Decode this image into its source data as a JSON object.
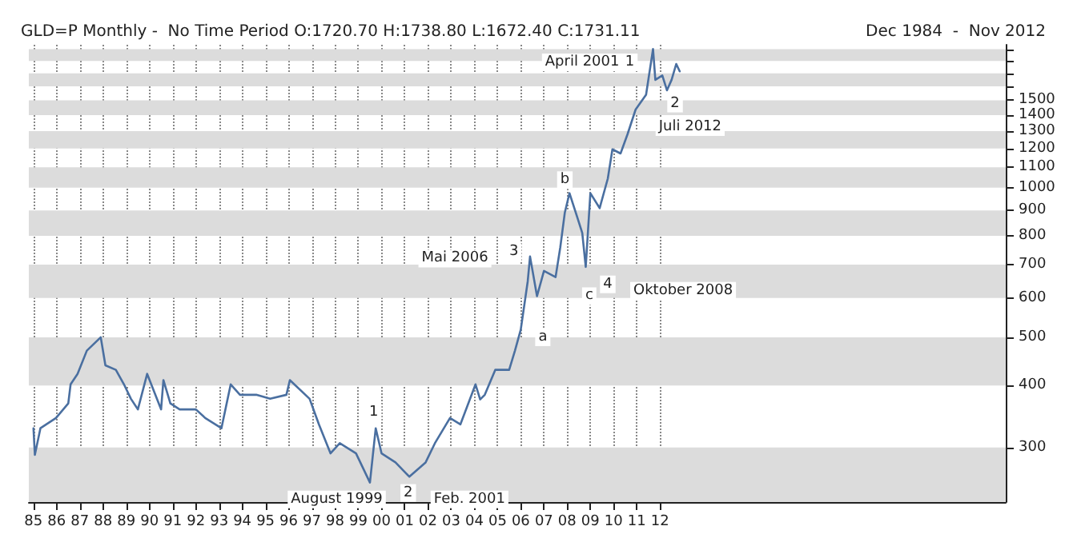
{
  "chart_data": {
    "type": "line",
    "title": "GLD=P Monthly -  No Time Period O:1720.70 H:1738.80 L:1672.40 C:1731.11",
    "subtitle": "Dec 1984  -  Nov 2012",
    "x": [
      1985.0,
      1985.06,
      1985.3,
      1985.97,
      1986.5,
      1986.6,
      1986.9,
      1987.3,
      1987.9,
      1988.1,
      1988.55,
      1988.9,
      1989.2,
      1989.5,
      1989.9,
      1990.5,
      1990.6,
      1990.9,
      1991.3,
      1992.0,
      1992.4,
      1993.1,
      1993.5,
      1993.9,
      1994.6,
      1995.2,
      1995.9,
      1996.05,
      1996.9,
      1997.3,
      1997.8,
      1998.2,
      1998.9,
      1999.5,
      1999.75,
      2000.0,
      2000.6,
      2001.2,
      2001.9,
      2002.3,
      2002.95,
      2003.4,
      2004.05,
      2004.25,
      2004.45,
      2004.9,
      2005.5,
      2005.75,
      2006.0,
      2006.3,
      2006.4,
      2006.7,
      2007.0,
      2007.5,
      2007.7,
      2007.9,
      2008.1,
      2008.45,
      2008.65,
      2008.8,
      2009.0,
      2009.4,
      2009.75,
      2009.95,
      2010.3,
      2010.6,
      2010.95,
      2011.4,
      2011.7,
      2011.8,
      2012.1,
      2012.3,
      2012.5,
      2012.7,
      2012.85
    ],
    "series": [
      {
        "color": "#4a6fa0",
        "values": [
          328,
          290,
          328,
          344,
          368,
          402,
          422,
          470,
          500,
          439,
          430,
          402,
          376,
          358,
          422,
          358,
          410,
          368,
          358,
          358,
          344,
          328,
          402,
          383,
          383,
          376,
          383,
          410,
          376,
          334,
          292,
          306,
          292,
          255,
          328,
          292,
          280,
          262,
          280,
          306,
          344,
          334,
          402,
          375,
          383,
          430,
          430,
          470,
          518,
          648,
          727,
          605,
          680,
          661,
          757,
          892,
          975,
          868,
          811,
          693,
          975,
          910,
          1043,
          1195,
          1172,
          1281,
          1437,
          1539,
          1902,
          1649,
          1683,
          1571,
          1649,
          1775,
          1715
        ]
      }
    ],
    "log": "y",
    "xlim": [
      1984.8,
      2026.9
    ],
    "ylim": [
      233,
      1940
    ],
    "xticks": [
      {
        "value": 1985,
        "label": "85"
      },
      {
        "value": 1986,
        "label": "86"
      },
      {
        "value": 1987,
        "label": "87"
      },
      {
        "value": 1988,
        "label": "88"
      },
      {
        "value": 1989,
        "label": "89"
      },
      {
        "value": 1990,
        "label": "90"
      },
      {
        "value": 1991,
        "label": "91"
      },
      {
        "value": 1992,
        "label": "92"
      },
      {
        "value": 1993,
        "label": "93"
      },
      {
        "value": 1994,
        "label": "94"
      },
      {
        "value": 1995,
        "label": "95"
      },
      {
        "value": 1996,
        "label": "96"
      },
      {
        "value": 1997,
        "label": "97"
      },
      {
        "value": 1998,
        "label": "98"
      },
      {
        "value": 1999,
        "label": "99"
      },
      {
        "value": 2000,
        "label": "00"
      },
      {
        "value": 2001,
        "label": "01"
      },
      {
        "value": 2002,
        "label": "02"
      },
      {
        "value": 2003,
        "label": "03"
      },
      {
        "value": 2004,
        "label": "04"
      },
      {
        "value": 2005,
        "label": "05"
      },
      {
        "value": 2006,
        "label": "06"
      },
      {
        "value": 2007,
        "label": "07"
      },
      {
        "value": 2008,
        "label": "08"
      },
      {
        "value": 2009,
        "label": "09"
      },
      {
        "value": 2010,
        "label": "10"
      },
      {
        "value": 2011,
        "label": "11"
      },
      {
        "value": 2012,
        "label": "12"
      }
    ],
    "yticks": [
      300,
      400,
      500,
      600,
      700,
      800,
      900,
      1000,
      1100,
      1200,
      1300,
      1400,
      1500,
      {
        "value": 1600,
        "label": null
      },
      {
        "value": 1700,
        "label": null
      },
      {
        "value": 1800,
        "label": null
      },
      {
        "value": 1900,
        "label": null
      }
    ],
    "grid": "x",
    "marker": "none",
    "line_style": "solid",
    "bands": [
      {
        "axis": "y",
        "from": 233,
        "to": 300,
        "color": "#dcdcdc"
      },
      {
        "axis": "y",
        "from": 400,
        "to": 500,
        "color": "#dcdcdc"
      },
      {
        "axis": "y",
        "from": 600,
        "to": 700,
        "color": "#dcdcdc"
      },
      {
        "axis": "y",
        "from": 800,
        "to": 900,
        "color": "#dcdcdc"
      },
      {
        "axis": "y",
        "from": 1000,
        "to": 1100,
        "color": "#dcdcdc"
      },
      {
        "axis": "y",
        "from": 1200,
        "to": 1300,
        "color": "#dcdcdc"
      },
      {
        "axis": "y",
        "from": 1400,
        "to": 1500,
        "color": "#dcdcdc"
      },
      {
        "axis": "y",
        "from": 1600,
        "to": 1700,
        "color": "#dcdcdc"
      },
      {
        "axis": "y",
        "from": 1800,
        "to": 1900,
        "color": "#dcdcdc"
      }
    ],
    "annotations": [
      "Mai 2006",
      {
        "text": "3",
        "x": 2005.7,
        "y": 742
      },
      {
        "text": "4",
        "x": 2009.75,
        "y": 639
      },
      "Oktober 2008",
      "August 1999",
      {
        "text": "2",
        "x": 2001.15,
        "y": 243
      },
      "Feb. 2001",
      {
        "text": "April 2001",
        "x": 2008.65,
        "y": 1788
      },
      {
        "text": "1",
        "x": 2010.7,
        "y": 1788
      },
      {
        "text": "2",
        "x": 2012.65,
        "y": 1477
      },
      {
        "text": "Juli 2012",
        "x": 2013.3,
        "y": 1325
      },
      {
        "text": "b",
        "x": 2007.9,
        "y": 1036
      },
      {
        "text": "a",
        "x": 2006.95,
        "y": 500
      },
      {
        "text": "c",
        "x": 2008.95,
        "y": 605
      },
      {
        "text": "1",
        "x": 1999.66,
        "y": 353
      }
    ]
  }
}
